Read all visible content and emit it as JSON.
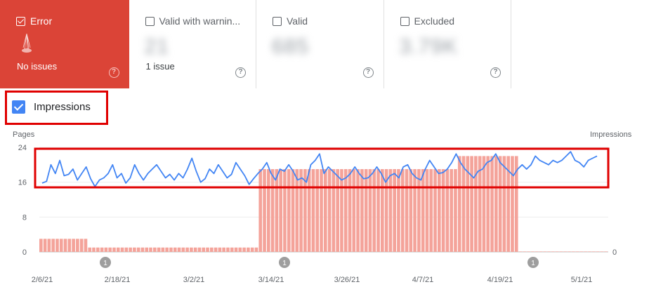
{
  "status_cards": [
    {
      "label": "Error",
      "count": "",
      "sub": "No issues",
      "checked": true
    },
    {
      "label": "Valid with warnin...",
      "count": "21",
      "sub": "1 issue",
      "checked": false
    },
    {
      "label": "Valid",
      "count": "685",
      "sub": "",
      "checked": false
    },
    {
      "label": "Excluded",
      "count": "3.79K",
      "sub": "",
      "checked": false
    }
  ],
  "help_glyph": "?",
  "impressions_toggle": {
    "label": "Impressions",
    "checked": true
  },
  "colors": {
    "error": "#db4437",
    "bar": "#f4a39a",
    "line": "#4285f4",
    "highlight": "#e00000"
  },
  "chart_data": {
    "type": "bar",
    "left_axis_label": "Pages",
    "right_axis_label": "Impressions",
    "y_ticks_left": [
      "24",
      "16",
      "8",
      "0"
    ],
    "y_ticks_right": [
      "0"
    ],
    "ylim": [
      0,
      24
    ],
    "x_tick_labels": [
      "2/6/21",
      "2/18/21",
      "3/2/21",
      "3/14/21",
      "3/26/21",
      "4/7/21",
      "4/19/21",
      "5/1/21"
    ],
    "annotations": [
      "1",
      "1",
      "1"
    ],
    "bars": [
      3,
      3,
      3,
      3,
      3,
      3,
      3,
      3,
      3,
      3,
      3,
      3,
      1,
      1,
      1,
      1,
      1,
      1,
      1,
      1,
      1,
      1,
      1,
      1,
      1,
      1,
      1,
      1,
      1,
      1,
      1,
      1,
      1,
      1,
      1,
      1,
      1,
      1,
      1,
      1,
      1,
      1,
      1,
      1,
      1,
      1,
      1,
      1,
      1,
      1,
      1,
      1,
      1,
      1,
      19,
      19,
      19,
      19,
      19,
      19,
      19,
      19,
      19,
      19,
      19,
      19,
      19,
      19,
      19,
      19,
      19,
      19,
      19,
      19,
      19,
      19,
      19,
      19,
      19,
      19,
      19,
      19,
      19,
      19,
      19,
      19,
      19,
      19,
      19,
      19,
      19,
      19,
      19,
      19,
      19,
      19,
      19,
      19,
      19,
      19,
      19,
      19,
      19,
      22,
      22,
      22,
      22,
      22,
      22,
      22,
      22,
      22,
      22,
      22,
      22,
      22,
      22,
      22,
      0,
      0,
      0,
      0,
      0,
      0,
      0,
      0,
      0,
      0,
      0,
      0,
      0,
      0,
      0,
      0,
      0,
      0,
      0,
      0,
      0,
      0
    ],
    "impressions_line": [
      15.8,
      16.2,
      20,
      18,
      21,
      17.5,
      17.8,
      19,
      16.5,
      18,
      19.5,
      16.8,
      15,
      16.5,
      17,
      18,
      20,
      17,
      18,
      15.8,
      17,
      20,
      18,
      16.5,
      18,
      19,
      20,
      18.5,
      17,
      17.8,
      16.5,
      18,
      17,
      19,
      21.5,
      18.5,
      16,
      16.8,
      19,
      18,
      20,
      18.5,
      17,
      17.8,
      20.5,
      19,
      17.5,
      15.5,
      16.8,
      18,
      19,
      20.5,
      18,
      16.5,
      19,
      18.5,
      20,
      18.5,
      16.5,
      17,
      16,
      20,
      21,
      22.5,
      18,
      19.5,
      18.5,
      17.5,
      16.5,
      17,
      18,
      19.5,
      18,
      16.8,
      17,
      18,
      19.5,
      18,
      16,
      17.5,
      18,
      17,
      19.5,
      20,
      18,
      17,
      16.5,
      19,
      21,
      19.5,
      18,
      18.2,
      19,
      20.5,
      22.5,
      20.5,
      19,
      18,
      17,
      18.5,
      19,
      20.5,
      21,
      22.5,
      20.5,
      19.5,
      18.5,
      17.5,
      19,
      20,
      19,
      20,
      22,
      21,
      20.5,
      20,
      21,
      20.5,
      21,
      22,
      23,
      21,
      20.5,
      19.5,
      21,
      21.5,
      22
    ]
  }
}
